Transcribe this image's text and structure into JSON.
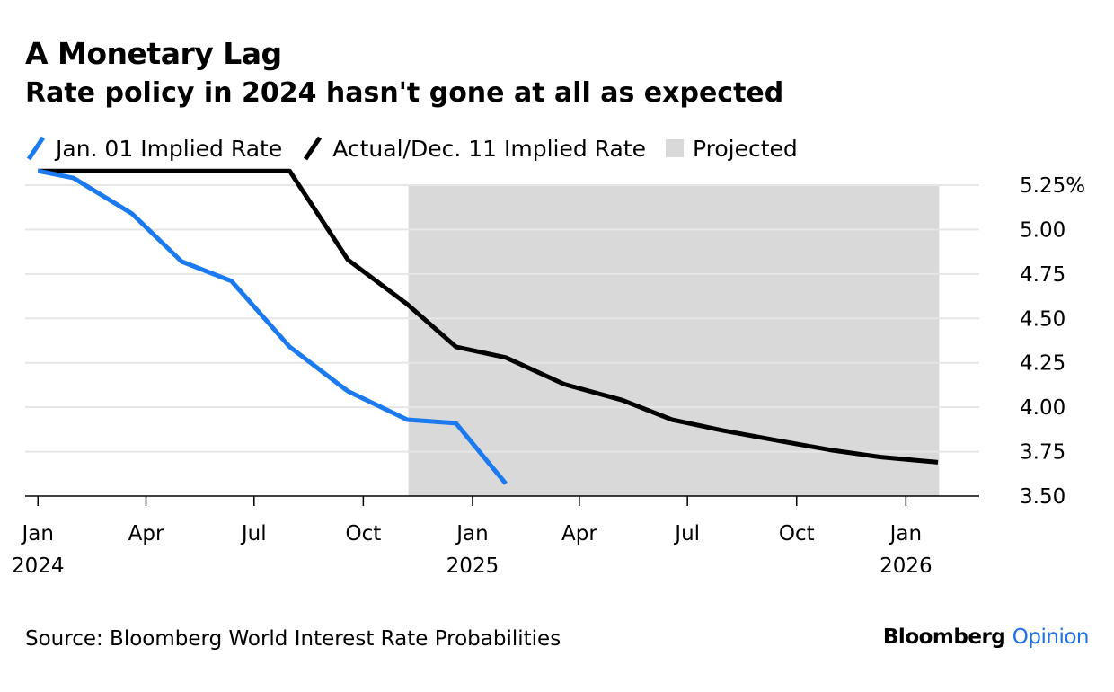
{
  "chart_data": {
    "type": "line",
    "title": "A Monetary Lag",
    "subtitle": "Rate policy in 2024 hasn't gone at all as expected",
    "ylim": [
      3.5,
      5.3
    ],
    "yticks": [
      {
        "value": 5.25,
        "label": "5.25%"
      },
      {
        "value": 5.0,
        "label": "5.00"
      },
      {
        "value": 4.75,
        "label": "4.75"
      },
      {
        "value": 4.5,
        "label": "4.50"
      },
      {
        "value": 4.25,
        "label": "4.25"
      },
      {
        "value": 4.0,
        "label": "4.00"
      },
      {
        "value": 3.75,
        "label": "3.75"
      },
      {
        "value": 3.5,
        "label": "3.50"
      }
    ],
    "xlim": [
      "2023-12-25",
      "2026-02-28"
    ],
    "xticks": [
      {
        "date": "2024-01-01",
        "label": "Jan",
        "year": "2024"
      },
      {
        "date": "2024-04-01",
        "label": "Apr",
        "year": ""
      },
      {
        "date": "2024-07-01",
        "label": "Jul",
        "year": ""
      },
      {
        "date": "2024-10-01",
        "label": "Oct",
        "year": ""
      },
      {
        "date": "2025-01-01",
        "label": "Jan",
        "year": "2025"
      },
      {
        "date": "2025-04-01",
        "label": "Apr",
        "year": ""
      },
      {
        "date": "2025-07-01",
        "label": "Jul",
        "year": ""
      },
      {
        "date": "2025-10-01",
        "label": "Oct",
        "year": ""
      },
      {
        "date": "2026-01-01",
        "label": "Jan",
        "year": "2026"
      }
    ],
    "grid": true,
    "legend_position": "top-left",
    "shaded_region": {
      "label": "Projected",
      "start": "2024-11-08",
      "end": "2026-01-29",
      "color": "#d9d9d9"
    },
    "series": [
      {
        "name": "Jan. 01 Implied Rate",
        "color": "#1b7aef",
        "points": [
          {
            "x": "2024-01-01",
            "y": 5.33
          },
          {
            "x": "2024-01-31",
            "y": 5.29
          },
          {
            "x": "2024-03-20",
            "y": 5.09
          },
          {
            "x": "2024-05-01",
            "y": 4.82
          },
          {
            "x": "2024-06-12",
            "y": 4.71
          },
          {
            "x": "2024-07-31",
            "y": 4.34
          },
          {
            "x": "2024-09-18",
            "y": 4.09
          },
          {
            "x": "2024-11-07",
            "y": 3.93
          },
          {
            "x": "2024-12-18",
            "y": 3.91
          },
          {
            "x": "2025-01-29",
            "y": 3.57
          }
        ]
      },
      {
        "name": "Actual/Dec. 11 Implied Rate",
        "color": "#000000",
        "points": [
          {
            "x": "2024-01-01",
            "y": 5.33
          },
          {
            "x": "2024-07-31",
            "y": 5.33
          },
          {
            "x": "2024-09-18",
            "y": 4.83
          },
          {
            "x": "2024-11-07",
            "y": 4.58
          },
          {
            "x": "2024-12-18",
            "y": 4.34
          },
          {
            "x": "2025-01-29",
            "y": 4.28
          },
          {
            "x": "2025-03-19",
            "y": 4.13
          },
          {
            "x": "2025-05-07",
            "y": 4.04
          },
          {
            "x": "2025-06-18",
            "y": 3.93
          },
          {
            "x": "2025-07-30",
            "y": 3.87
          },
          {
            "x": "2025-09-17",
            "y": 3.81
          },
          {
            "x": "2025-10-29",
            "y": 3.76
          },
          {
            "x": "2025-12-10",
            "y": 3.72
          },
          {
            "x": "2026-01-28",
            "y": 3.69
          }
        ]
      }
    ]
  },
  "footer": {
    "source": "Source: Bloomberg World Interest Rate Probabilities",
    "brand_name": "Bloomberg",
    "brand_section": "Opinion"
  }
}
